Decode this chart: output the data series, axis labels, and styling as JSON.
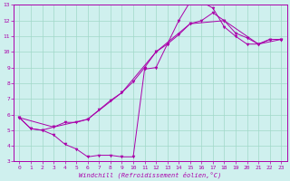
{
  "title": "",
  "xlabel": "Windchill (Refroidissement éolien,°C)",
  "xlim": [
    -0.5,
    23.5
  ],
  "ylim": [
    3,
    13
  ],
  "xticks": [
    0,
    1,
    2,
    3,
    4,
    5,
    6,
    7,
    8,
    9,
    10,
    11,
    12,
    13,
    14,
    15,
    16,
    17,
    18,
    19,
    20,
    21,
    22,
    23
  ],
  "yticks": [
    3,
    4,
    5,
    6,
    7,
    8,
    9,
    10,
    11,
    12,
    13
  ],
  "background_color": "#cff0ee",
  "grid_color": "#a0d8c8",
  "line_color": "#aa00aa",
  "curves": [
    {
      "points": [
        [
          0,
          5.8
        ],
        [
          1,
          5.1
        ],
        [
          2,
          5.0
        ],
        [
          3,
          4.7
        ],
        [
          4,
          4.1
        ],
        [
          5,
          3.8
        ],
        [
          6,
          3.3
        ],
        [
          7,
          3.4
        ],
        [
          8,
          3.4
        ],
        [
          9,
          3.3
        ],
        [
          10,
          3.3
        ],
        [
          11,
          8.9
        ],
        [
          12,
          9.0
        ],
        [
          13,
          10.5
        ],
        [
          14,
          12.0
        ],
        [
          15,
          13.2
        ],
        [
          16,
          13.2
        ],
        [
          17,
          12.8
        ],
        [
          18,
          11.6
        ],
        [
          19,
          11.0
        ],
        [
          20,
          10.5
        ],
        [
          21,
          10.5
        ],
        [
          22,
          10.8
        ],
        [
          23,
          10.8
        ]
      ],
      "marker": "v"
    },
    {
      "points": [
        [
          0,
          5.8
        ],
        [
          1,
          5.1
        ],
        [
          2,
          5.0
        ],
        [
          3,
          5.2
        ],
        [
          4,
          5.5
        ],
        [
          5,
          5.5
        ],
        [
          6,
          5.7
        ],
        [
          7,
          6.3
        ],
        [
          8,
          6.9
        ],
        [
          9,
          7.4
        ],
        [
          10,
          8.1
        ],
        [
          11,
          9.0
        ],
        [
          12,
          10.0
        ],
        [
          13,
          10.5
        ],
        [
          14,
          11.1
        ],
        [
          15,
          11.8
        ],
        [
          16,
          12.0
        ],
        [
          17,
          12.5
        ],
        [
          18,
          12.0
        ],
        [
          19,
          11.2
        ],
        [
          20,
          10.9
        ],
        [
          21,
          10.5
        ],
        [
          22,
          10.8
        ],
        [
          23,
          10.8
        ]
      ],
      "marker": "v"
    },
    {
      "points": [
        [
          0,
          5.8
        ],
        [
          3,
          5.2
        ],
        [
          6,
          5.7
        ],
        [
          9,
          7.4
        ],
        [
          12,
          10.0
        ],
        [
          15,
          11.8
        ],
        [
          18,
          12.0
        ],
        [
          21,
          10.5
        ],
        [
          23,
          10.8
        ]
      ],
      "marker": "v"
    }
  ]
}
